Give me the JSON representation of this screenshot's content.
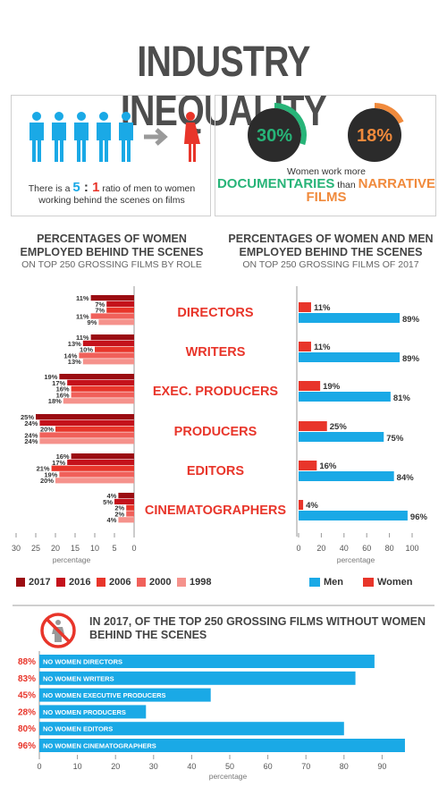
{
  "title": "INDUSTRY INEQUALITY",
  "ratio_panel": {
    "text_before": "There is a ",
    "ratio_men": "5",
    "ratio_sep": " : ",
    "ratio_women": "1",
    "text_after": " ratio of men to women",
    "line2": "working behind the scenes on films",
    "colors": {
      "men": "#1aa9e6",
      "women": "#e8352a",
      "arrow": "#9a9a9a"
    }
  },
  "documentary_panel": {
    "donut1_label": "30%",
    "donut1_value": 30,
    "donut1_color": "#27b478",
    "donut2_label": "18%",
    "donut2_value": 18,
    "donut2_color": "#f08a3c",
    "line1": "Women work more",
    "highlight1": "DOCUMENTARIES",
    "than": " than ",
    "highlight2": "NARRATIVE FILMS"
  },
  "left_chart_title": "PERCENTAGES OF WOMEN\nEMPLOYED BEHIND THE SCENES",
  "left_chart_subtitle": "ON TOP 250 GROSSING FILMS BY ROLE",
  "right_chart_title": "PERCENTAGES OF WOMEN AND MEN\nEMPLOYED BEHIND THE SCENES",
  "right_chart_subtitle": "ON TOP 250 GROSSING FILMS OF 2017",
  "chart_data": [
    {
      "type": "bar",
      "orientation": "horizontal-reversed",
      "categories": [
        "DIRECTORS",
        "WRITERS",
        "EXEC. PRODUCERS",
        "PRODUCERS",
        "EDITORS",
        "CINEMATOGRAPHERS"
      ],
      "series": [
        {
          "name": "2017",
          "color": "#9b0c12",
          "values": [
            11,
            11,
            19,
            25,
            16,
            4
          ]
        },
        {
          "name": "2016",
          "color": "#c4121b",
          "values": [
            7,
            13,
            17,
            24,
            17,
            5
          ]
        },
        {
          "name": "2006",
          "color": "#e8352a",
          "values": [
            7,
            10,
            16,
            20,
            21,
            2
          ]
        },
        {
          "name": "2000",
          "color": "#f0605a",
          "values": [
            11,
            14,
            16,
            24,
            19,
            2
          ]
        },
        {
          "name": "1998",
          "color": "#f5928c",
          "values": [
            9,
            13,
            18,
            24,
            20,
            4
          ]
        }
      ],
      "xlim": [
        0,
        30
      ],
      "xticks": [
        30,
        25,
        20,
        15,
        10,
        5,
        0
      ],
      "xlabel": "percentage"
    },
    {
      "type": "bar",
      "orientation": "horizontal",
      "categories": [
        "DIRECTORS",
        "WRITERS",
        "EXEC. PRODUCERS",
        "PRODUCERS",
        "EDITORS",
        "CINEMATOGRAPHERS"
      ],
      "series": [
        {
          "name": "Women",
          "color": "#e8352a",
          "values": [
            11,
            11,
            19,
            25,
            16,
            4
          ]
        },
        {
          "name": "Men",
          "color": "#1aa9e6",
          "values": [
            89,
            89,
            81,
            75,
            84,
            96
          ]
        }
      ],
      "xlim": [
        0,
        100
      ],
      "xticks": [
        0,
        20,
        40,
        60,
        80,
        100
      ],
      "xlabel": "percentage",
      "legend": [
        "Men",
        "Women"
      ]
    },
    {
      "type": "bar",
      "orientation": "horizontal",
      "title": "IN 2017, OF THE TOP 250 GROSSING FILMS WITHOUT WOMEN\nBEHIND THE SCENES",
      "categories": [
        "NO WOMEN DIRECTORS",
        "NO WOMEN WRITERS",
        "NO WOMEN EXECUTIVE PRODUCERS",
        "NO WOMEN PRODUCERS",
        "NO WOMEN EDITORS",
        "NO WOMEN CINEMATOGRAPHERS"
      ],
      "values": [
        88,
        83,
        45,
        28,
        80,
        96
      ],
      "value_labels": [
        "88%",
        "83%",
        "45%",
        "28%",
        "80%",
        "96%"
      ],
      "color": "#1aa9e6",
      "label_color": "#e8352a",
      "xlim": [
        0,
        100
      ],
      "xticks": [
        0,
        10,
        20,
        30,
        40,
        50,
        60,
        70,
        80,
        90
      ],
      "xlabel": "percentage"
    }
  ]
}
